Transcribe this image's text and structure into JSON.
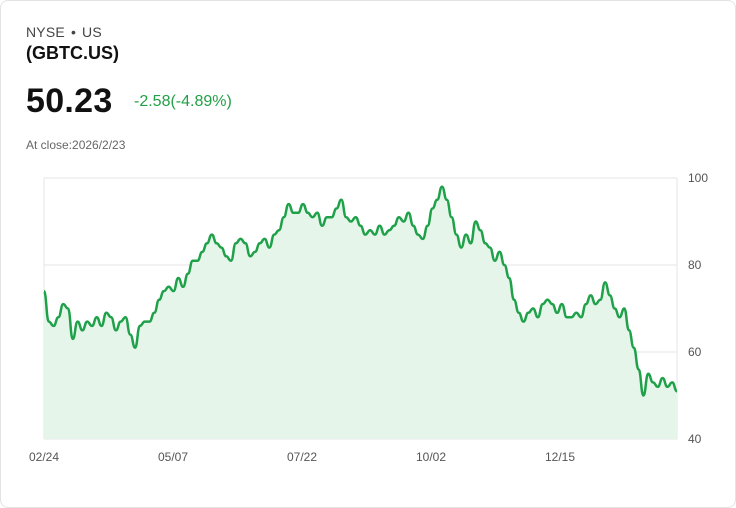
{
  "header": {
    "exchange": "NYSE",
    "separator": "•",
    "country": "US",
    "ticker": "(GBTC.US)",
    "price": "50.23",
    "change": "-2.58(-4.89%)",
    "close_label": "At close:2026/2/23"
  },
  "colors": {
    "line": "#1fa14a",
    "fill": "#e6f5ea",
    "grid": "#e6e6e6"
  },
  "chart_data": {
    "type": "area",
    "ylim": [
      40,
      100
    ],
    "yticks": [
      "40",
      "60",
      "80",
      "100"
    ],
    "xticks": [
      "02/24",
      "05/07",
      "07/22",
      "10/02",
      "12/15"
    ],
    "grid": true,
    "values": [
      74,
      67,
      66,
      68,
      71,
      70,
      63,
      67,
      65,
      67,
      66,
      68,
      66,
      69,
      68,
      65,
      67,
      68,
      64,
      61,
      66,
      67,
      67,
      69,
      72,
      74,
      75,
      74,
      77,
      75,
      78,
      81,
      81,
      83,
      85,
      87,
      85,
      84,
      82,
      81,
      85,
      86,
      85,
      82,
      83,
      85,
      86,
      84,
      87,
      88,
      91,
      94,
      92,
      92,
      94,
      92,
      91,
      92,
      89,
      91,
      91,
      93,
      95,
      91,
      90,
      91,
      89,
      87,
      88,
      87,
      89,
      87,
      88,
      89,
      91,
      90,
      92,
      89,
      87,
      86,
      89,
      93,
      95,
      98,
      95,
      91,
      87,
      84,
      87,
      85,
      90,
      88,
      85,
      84,
      81,
      83,
      80,
      77,
      72,
      69,
      67,
      69,
      70,
      68,
      71,
      72,
      71,
      69,
      71,
      68,
      68,
      69,
      68,
      71,
      73,
      71,
      72,
      76,
      73,
      70,
      68,
      70,
      65,
      61,
      56,
      50,
      55,
      53,
      52,
      54,
      52,
      53,
      51
    ]
  }
}
